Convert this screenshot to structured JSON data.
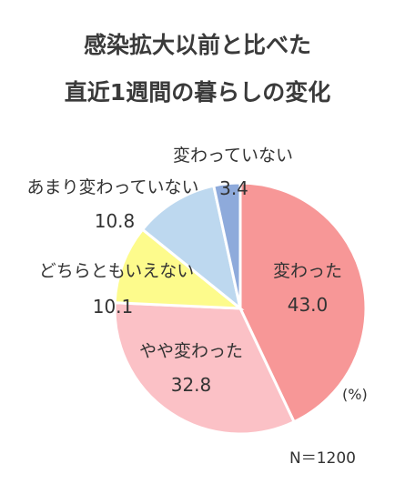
{
  "title_line1": "感染拡大以前と比べた",
  "title_line2": "直近1週間の暮らしの変化",
  "unit_note": "(%)",
  "sample_note": "N＝1200",
  "chart_data": {
    "type": "pie",
    "title": "感染拡大以前と比べた直近1週間の暮らしの変化",
    "start_angle_deg": 0,
    "direction": "clockwise",
    "slices": [
      {
        "label": "変わった",
        "value": 43.0,
        "value_text": "43.0",
        "color": "#f79797"
      },
      {
        "label": "やや変わった",
        "value": 32.8,
        "value_text": "32.8",
        "color": "#fbc1c6"
      },
      {
        "label": "どちらともいえない",
        "value": 10.1,
        "value_text": "10.1",
        "color": "#fdfb8c"
      },
      {
        "label": "あまり変わっていない",
        "value": 10.8,
        "value_text": "10.8",
        "color": "#bdd8ef"
      },
      {
        "label": "変わっていない",
        "value": 3.4,
        "value_text": "3.4",
        "color": "#8eaadb"
      }
    ]
  }
}
